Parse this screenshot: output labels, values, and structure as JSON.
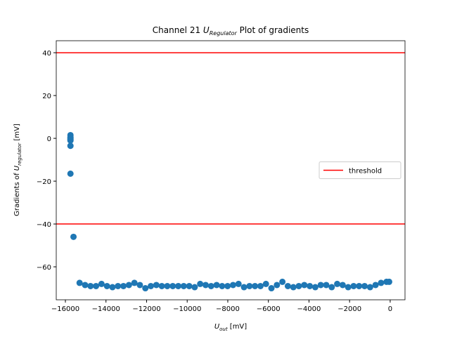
{
  "chart_data": {
    "type": "scatter",
    "title": {
      "prefix": "Channel 21 ",
      "symbol": "U",
      "subscript": "Regulator",
      "suffix": " Plot of gradients"
    },
    "xlabel": {
      "symbol": "U",
      "subscript": "out",
      "suffix": " [mV]"
    },
    "ylabel": {
      "prefix": "Gradients of ",
      "symbol": "U",
      "subscript": "regulator",
      "suffix": " [mV]"
    },
    "xlim": [
      -16450,
      730
    ],
    "ylim": [
      -75.4,
      45.6
    ],
    "xticks": [
      {
        "value": -16000,
        "label": "−16000"
      },
      {
        "value": -14000,
        "label": "−14000"
      },
      {
        "value": -12000,
        "label": "−12000"
      },
      {
        "value": -10000,
        "label": "−10000"
      },
      {
        "value": -8000,
        "label": "−8000"
      },
      {
        "value": -6000,
        "label": "−6000"
      },
      {
        "value": -4000,
        "label": "−4000"
      },
      {
        "value": -2000,
        "label": "−2000"
      },
      0
    ],
    "yticks": [
      {
        "value": -60,
        "label": "−60"
      },
      {
        "value": -40,
        "label": "−40"
      },
      {
        "value": -20,
        "label": "−20"
      },
      0,
      20,
      40
    ],
    "hlines": {
      "name": "threshold",
      "color": "#ff0000",
      "values": [
        40,
        -40
      ]
    },
    "legend": "center right",
    "series": [
      {
        "color": "#1f77b4",
        "x": [
          -15750,
          -15750,
          -15750,
          -15750,
          -15750,
          -15750,
          -15750,
          -15600,
          -15300,
          -15030,
          -14760,
          -14490,
          -14220,
          -13950,
          -13680,
          -13410,
          -13140,
          -12870,
          -12600,
          -12330,
          -12060,
          -11790,
          -11520,
          -11250,
          -10980,
          -10710,
          -10440,
          -10170,
          -9900,
          -9630,
          -9360,
          -9090,
          -8820,
          -8550,
          -8280,
          -8010,
          -7740,
          -7470,
          -7200,
          -6930,
          -6660,
          -6390,
          -6120,
          -5850,
          -5580,
          -5310,
          -5040,
          -4770,
          -4500,
          -4230,
          -3960,
          -3690,
          -3420,
          -3150,
          -2880,
          -2610,
          -2340,
          -2070,
          -1800,
          -1530,
          -1260,
          -990,
          -720,
          -450,
          -180,
          -50
        ],
        "values": [
          1.5,
          0.5,
          0,
          -0.5,
          -1,
          -3.5,
          -16.5,
          -46,
          -67.5,
          -68.5,
          -69,
          -69,
          -68,
          -69,
          -69.5,
          -69,
          -69,
          -68.5,
          -67.5,
          -68.5,
          -70,
          -69,
          -68.5,
          -69,
          -69,
          -69,
          -69,
          -69,
          -69,
          -69.5,
          -68,
          -68.5,
          -69,
          -68.5,
          -69,
          -69,
          -68.5,
          -68,
          -69.5,
          -69,
          -69,
          -69,
          -68,
          -70,
          -68.5,
          -67,
          -69,
          -69.5,
          -69,
          -68.5,
          -69,
          -69.5,
          -68.5,
          -68.5,
          -69.5,
          -68,
          -68.5,
          -69.5,
          -69,
          -69,
          -69,
          -69.5,
          -68.5,
          -67.5,
          -67,
          -67
        ]
      }
    ]
  }
}
